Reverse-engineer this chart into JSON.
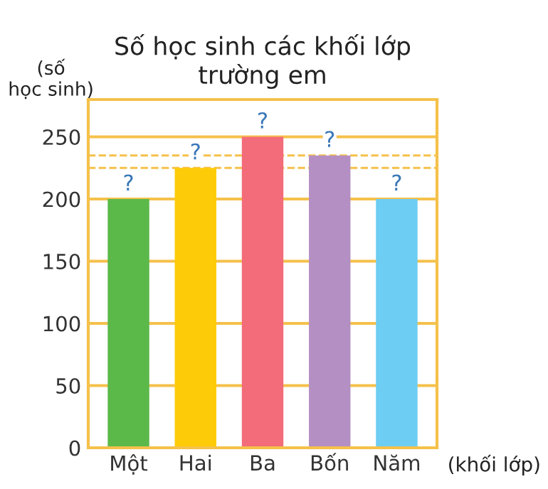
{
  "chart_data": {
    "type": "bar",
    "title": "Số học sinh các khối lớp\ntrường em",
    "xlabel": "(khối lớp)",
    "ylabel": "(số\nhọc sinh)",
    "categories": [
      "Một",
      "Hai",
      "Ba",
      "Bốn",
      "Năm"
    ],
    "values": [
      200,
      225,
      250,
      235,
      200
    ],
    "colors": [
      "#5bb94a",
      "#fecb08",
      "#f36c79",
      "#b48fc3",
      "#6dcdf3"
    ],
    "value_labels": [
      "?",
      "?",
      "?",
      "?",
      "?"
    ],
    "ref_lines": [
      {
        "axis": "y",
        "value": 225,
        "color": "#f5c14b",
        "line_style": "dashed"
      },
      {
        "axis": "y",
        "value": 235,
        "color": "#f5c14b",
        "line_style": "dashed"
      }
    ],
    "ylim": [
      0,
      280
    ],
    "yticks": [
      0,
      50,
      100,
      150,
      200,
      250
    ],
    "grid": "y"
  }
}
